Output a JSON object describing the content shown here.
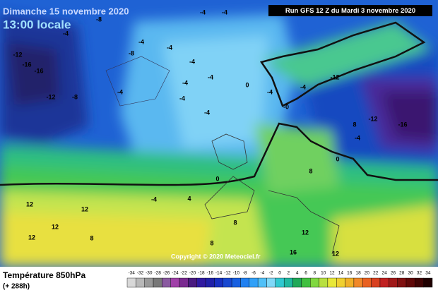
{
  "header": {
    "date": "Dimanche 15 novembre 2020",
    "time": "13:00 locale",
    "run": "Run GFS 12 Z du Mardi 3 novembre 2020"
  },
  "footer": {
    "variable": "Température 850hPa",
    "lead": "(+ 288h)",
    "copyright": "Copyright © 2020 Meteociel.fr"
  },
  "scale": {
    "labels": [
      -34,
      -32,
      -30,
      -28,
      -26,
      -24,
      -22,
      -20,
      -18,
      -16,
      -14,
      -12,
      -10,
      -8,
      -6,
      -4,
      -2,
      0,
      2,
      4,
      6,
      8,
      10,
      12,
      14,
      16,
      18,
      20,
      22,
      24,
      26,
      28,
      30,
      32,
      34
    ],
    "colors": [
      "#d8d8d8",
      "#b8b8b8",
      "#989898",
      "#787878",
      "#8a5aa0",
      "#a040a8",
      "#7a2a90",
      "#4a1a80",
      "#301aa0",
      "#2020a8",
      "#1830c0",
      "#1848d0",
      "#1860e0",
      "#2080f0",
      "#30a0f8",
      "#50c0f8",
      "#80d8f8",
      "#30c8d0",
      "#20b8a0",
      "#20a858",
      "#40c040",
      "#80d840",
      "#b8e040",
      "#e8e838",
      "#f0d030",
      "#f0b028",
      "#f08828",
      "#e86020",
      "#d84020",
      "#c02020",
      "#a01818",
      "#801010",
      "#600808",
      "#400404",
      "#200000"
    ]
  },
  "map_labels": [
    "-4",
    "-4",
    "-8",
    "-4",
    "-12",
    "-16",
    "-16",
    "-8",
    "-4",
    "-4",
    "-12",
    "-8",
    "-4",
    "-4",
    "-4",
    "-4",
    "-4",
    "-4",
    "0",
    "-4",
    "-4",
    "-0",
    "-12",
    "-12",
    "-16",
    "8",
    "-4",
    "0",
    "0",
    "-4",
    "4",
    "12",
    "12",
    "12",
    "12",
    "8",
    "8",
    "8",
    "12",
    "16",
    "12",
    "8"
  ]
}
